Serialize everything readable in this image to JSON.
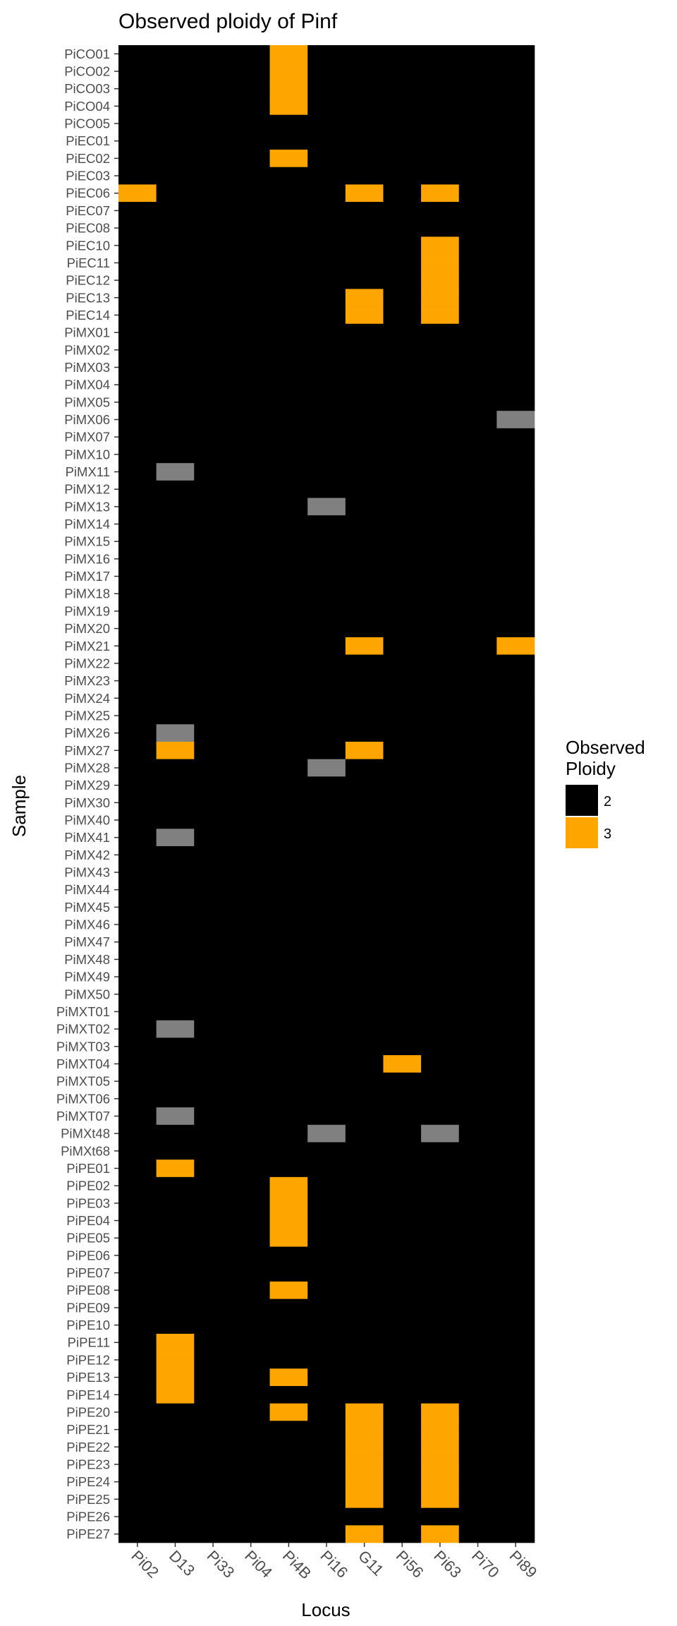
{
  "chart_data": {
    "type": "heatmap",
    "title": "Observed ploidy of Pinf",
    "xlabel": "Locus",
    "ylabel": "Sample",
    "loci": [
      "Pi02",
      "D13",
      "Pi33",
      "Pi04",
      "Pi4B",
      "Pi16",
      "G11",
      "Pi56",
      "Pi63",
      "Pi70",
      "Pi89"
    ],
    "samples": [
      "PiCO01",
      "PiCO02",
      "PiCO03",
      "PiCO04",
      "PiCO05",
      "PiEC01",
      "PiEC02",
      "PiEC03",
      "PiEC06",
      "PiEC07",
      "PiEC08",
      "PiEC10",
      "PiEC11",
      "PiEC12",
      "PiEC13",
      "PiEC14",
      "PiMX01",
      "PiMX02",
      "PiMX03",
      "PiMX04",
      "PiMX05",
      "PiMX06",
      "PiMX07",
      "PiMX10",
      "PiMX11",
      "PiMX12",
      "PiMX13",
      "PiMX14",
      "PiMX15",
      "PiMX16",
      "PiMX17",
      "PiMX18",
      "PiMX19",
      "PiMX20",
      "PiMX21",
      "PiMX22",
      "PiMX23",
      "PiMX24",
      "PiMX25",
      "PiMX26",
      "PiMX27",
      "PiMX28",
      "PiMX29",
      "PiMX30",
      "PiMX40",
      "PiMX41",
      "PiMX42",
      "PiMX43",
      "PiMX44",
      "PiMX45",
      "PiMX46",
      "PiMX47",
      "PiMX48",
      "PiMX49",
      "PiMX50",
      "PiMXT01",
      "PiMXT02",
      "PiMXT03",
      "PiMXT04",
      "PiMXT05",
      "PiMXT06",
      "PiMXT07",
      "PiMXt48",
      "PiMXt68",
      "PiPE01",
      "PiPE02",
      "PiPE03",
      "PiPE04",
      "PiPE05",
      "PiPE06",
      "PiPE07",
      "PiPE08",
      "PiPE09",
      "PiPE10",
      "PiPE11",
      "PiPE12",
      "PiPE13",
      "PiPE14",
      "PiPE20",
      "PiPE21",
      "PiPE22",
      "PiPE23",
      "PiPE24",
      "PiPE25",
      "PiPE26",
      "PiPE27"
    ],
    "default_value": 2,
    "ploidy3_cells": [
      [
        "PiCO01",
        "Pi4B"
      ],
      [
        "PiCO02",
        "Pi4B"
      ],
      [
        "PiCO03",
        "Pi4B"
      ],
      [
        "PiCO04",
        "Pi4B"
      ],
      [
        "PiEC02",
        "Pi4B"
      ],
      [
        "PiEC06",
        "Pi02"
      ],
      [
        "PiEC06",
        "G11"
      ],
      [
        "PiEC06",
        "Pi63"
      ],
      [
        "PiEC10",
        "Pi63"
      ],
      [
        "PiEC11",
        "Pi63"
      ],
      [
        "PiEC12",
        "Pi63"
      ],
      [
        "PiEC13",
        "Pi63"
      ],
      [
        "PiEC14",
        "Pi63"
      ],
      [
        "PiEC13",
        "G11"
      ],
      [
        "PiEC14",
        "G11"
      ],
      [
        "PiMX21",
        "G11"
      ],
      [
        "PiMX21",
        "Pi89"
      ],
      [
        "PiMX27",
        "D13"
      ],
      [
        "PiMX27",
        "G11"
      ],
      [
        "PiMXT04",
        "Pi56"
      ],
      [
        "PiPE01",
        "D13"
      ],
      [
        "PiPE02",
        "Pi4B"
      ],
      [
        "PiPE03",
        "Pi4B"
      ],
      [
        "PiPE04",
        "Pi4B"
      ],
      [
        "PiPE05",
        "Pi4B"
      ],
      [
        "PiPE08",
        "Pi4B"
      ],
      [
        "PiPE11",
        "D13"
      ],
      [
        "PiPE12",
        "D13"
      ],
      [
        "PiPE13",
        "D13"
      ],
      [
        "PiPE14",
        "D13"
      ],
      [
        "PiPE13",
        "Pi4B"
      ],
      [
        "PiPE20",
        "Pi4B"
      ],
      [
        "PiPE20",
        "G11"
      ],
      [
        "PiPE21",
        "G11"
      ],
      [
        "PiPE22",
        "G11"
      ],
      [
        "PiPE23",
        "G11"
      ],
      [
        "PiPE24",
        "G11"
      ],
      [
        "PiPE25",
        "G11"
      ],
      [
        "PiPE20",
        "Pi63"
      ],
      [
        "PiPE21",
        "Pi63"
      ],
      [
        "PiPE22",
        "Pi63"
      ],
      [
        "PiPE23",
        "Pi63"
      ],
      [
        "PiPE24",
        "Pi63"
      ],
      [
        "PiPE25",
        "Pi63"
      ],
      [
        "PiPE27",
        "G11"
      ],
      [
        "PiPE27",
        "Pi63"
      ]
    ],
    "missing_cells": [
      [
        "PiMX06",
        "Pi89"
      ],
      [
        "PiMX11",
        "D13"
      ],
      [
        "PiMX13",
        "Pi16"
      ],
      [
        "PiMX26",
        "D13"
      ],
      [
        "PiMX28",
        "Pi16"
      ],
      [
        "PiMX41",
        "D13"
      ],
      [
        "PiMXT02",
        "D13"
      ],
      [
        "PiMXT07",
        "D13"
      ],
      [
        "PiMXt48",
        "Pi16"
      ],
      [
        "PiMXt48",
        "Pi63"
      ]
    ],
    "legend": {
      "title_lines": [
        "Observed",
        "Ploidy"
      ],
      "placement": "right",
      "entries": [
        {
          "label": "2",
          "color": "#000000"
        },
        {
          "label": "3",
          "color": "#FFA500"
        }
      ]
    },
    "colors": {
      "ploidy2": "#000000",
      "ploidy3": "#FFA500",
      "missing": "#808080"
    },
    "grid": false
  }
}
